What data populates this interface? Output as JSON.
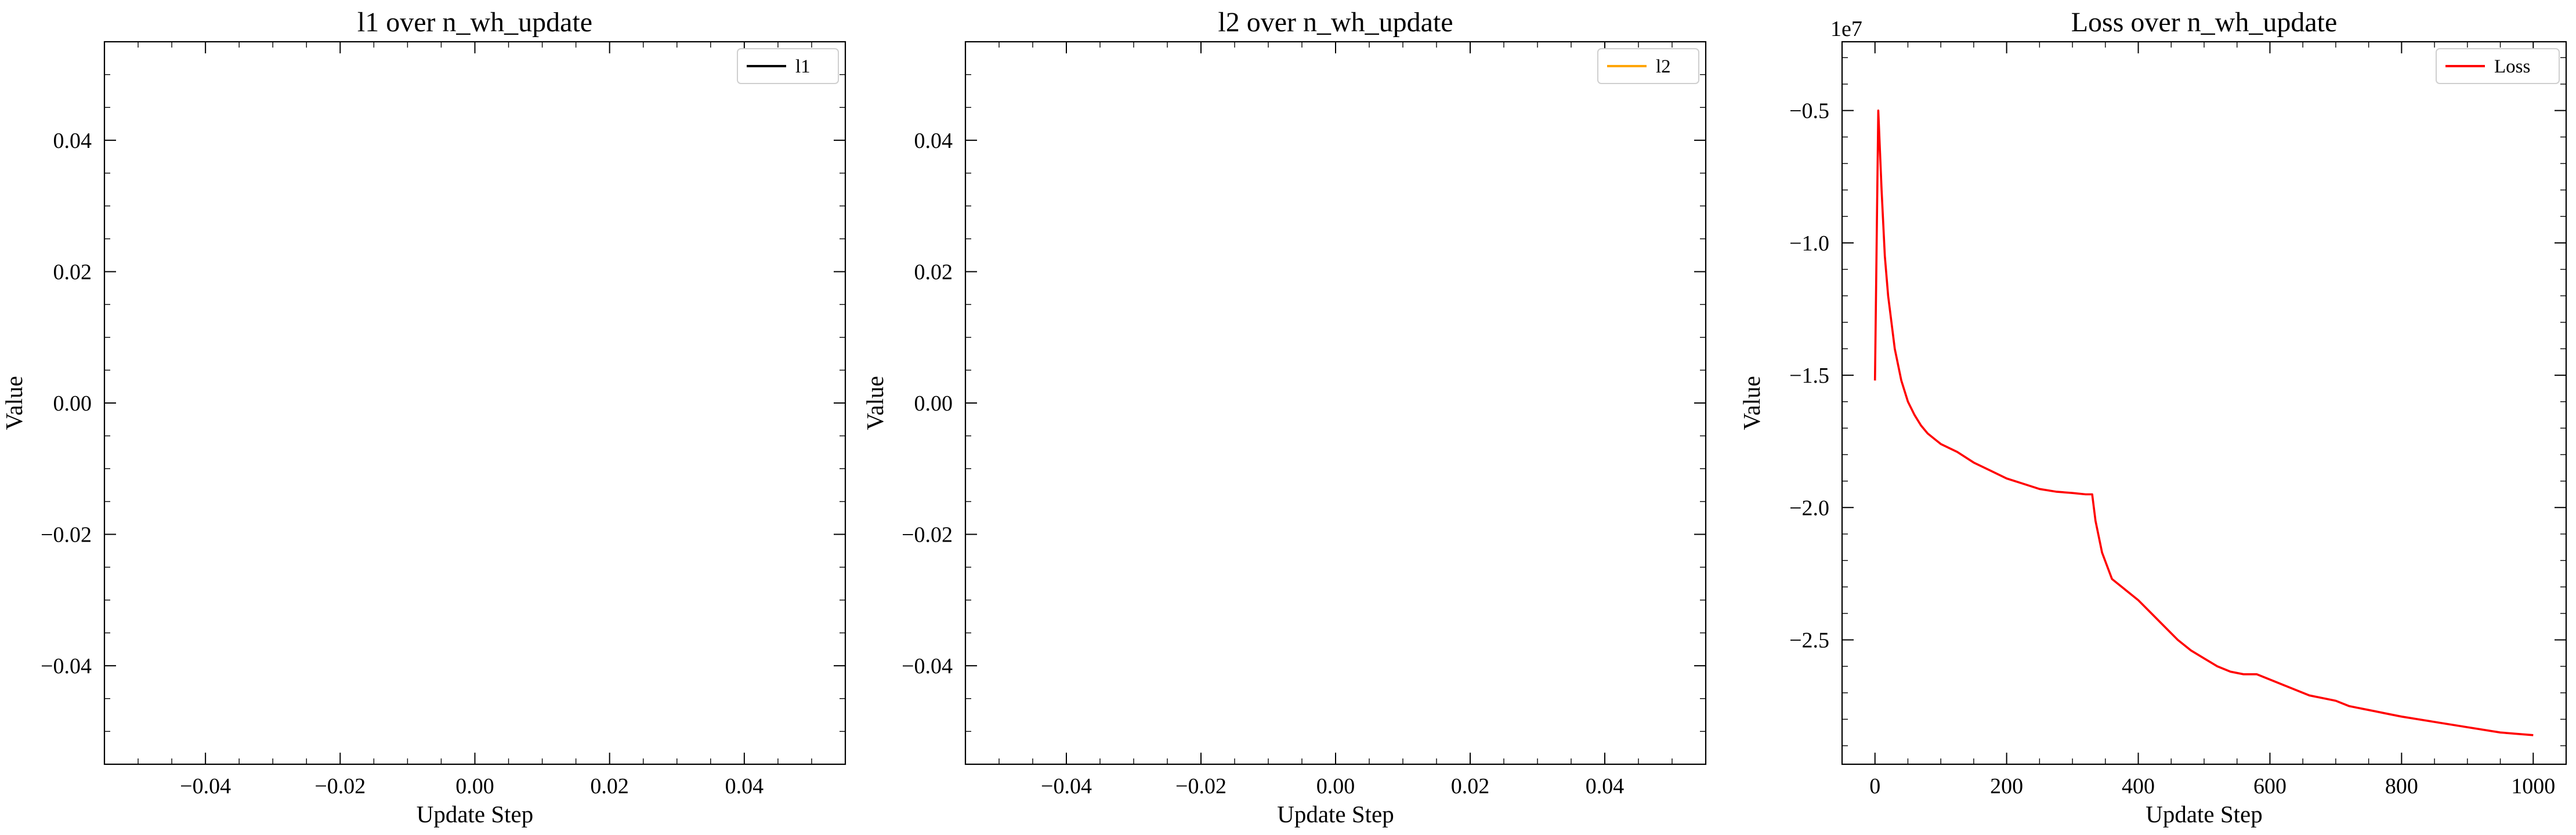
{
  "chart_data": [
    {
      "type": "line",
      "title": "l1 over n_wh_update",
      "xlabel": "Update Step",
      "ylabel": "Value",
      "xlim": [
        -0.055,
        0.055
      ],
      "ylim": [
        -0.055,
        0.055
      ],
      "x_ticks": [
        -0.04,
        -0.02,
        0.0,
        0.02,
        0.04
      ],
      "x_tick_labels": [
        "−0.04",
        "−0.02",
        "0.00",
        "0.02",
        "0.04"
      ],
      "y_ticks": [
        -0.04,
        -0.02,
        0.0,
        0.02,
        0.04
      ],
      "y_tick_labels": [
        "−0.04",
        "−0.02",
        "0.00",
        "0.02",
        "0.04"
      ],
      "minor_step": 0.005,
      "legend_position": "top-right",
      "series": [
        {
          "name": "l1",
          "color": "#000000",
          "x": [],
          "y": []
        }
      ]
    },
    {
      "type": "line",
      "title": "l2 over n_wh_update",
      "xlabel": "Update Step",
      "ylabel": "Value",
      "xlim": [
        -0.055,
        0.055
      ],
      "ylim": [
        -0.055,
        0.055
      ],
      "x_ticks": [
        -0.04,
        -0.02,
        0.0,
        0.02,
        0.04
      ],
      "x_tick_labels": [
        "−0.04",
        "−0.02",
        "0.00",
        "0.02",
        "0.04"
      ],
      "y_ticks": [
        -0.04,
        -0.02,
        0.0,
        0.02,
        0.04
      ],
      "y_tick_labels": [
        "−0.04",
        "−0.02",
        "0.00",
        "0.02",
        "0.04"
      ],
      "minor_step": 0.005,
      "legend_position": "top-right",
      "series": [
        {
          "name": "l2",
          "color": "#FFA500",
          "x": [],
          "y": []
        }
      ]
    },
    {
      "type": "line",
      "title": "Loss over n_wh_update",
      "xlabel": "Update Step",
      "ylabel": "Value",
      "y_offset_label": "1e7",
      "xlim": [
        -50,
        1050
      ],
      "ylim": [
        -2.97,
        -0.24
      ],
      "x_ticks": [
        0,
        200,
        400,
        600,
        800,
        1000
      ],
      "x_tick_labels": [
        "0",
        "200",
        "400",
        "600",
        "800",
        "1000"
      ],
      "x_minor_step": 50,
      "y_ticks": [
        -2.5,
        -2.0,
        -1.5,
        -1.0,
        -0.5
      ],
      "y_tick_labels": [
        "−2.5",
        "−2.0",
        "−1.5",
        "−1.0",
        "−0.5"
      ],
      "y_minor_step": 0.1,
      "legend_position": "top-right",
      "series": [
        {
          "name": "Loss",
          "color": "#FF0000",
          "x": [
            0,
            5,
            10,
            15,
            20,
            30,
            40,
            50,
            60,
            70,
            80,
            90,
            100,
            125,
            150,
            175,
            200,
            225,
            250,
            275,
            300,
            320,
            330,
            335,
            345,
            360,
            380,
            400,
            420,
            440,
            460,
            480,
            500,
            520,
            540,
            560,
            580,
            600,
            620,
            640,
            660,
            680,
            700,
            720,
            740,
            760,
            780,
            800,
            850,
            900,
            950,
            1000
          ],
          "y": [
            -1.52,
            -0.5,
            -0.8,
            -1.05,
            -1.2,
            -1.4,
            -1.52,
            -1.6,
            -1.65,
            -1.69,
            -1.72,
            -1.74,
            -1.76,
            -1.79,
            -1.83,
            -1.86,
            -1.89,
            -1.91,
            -1.93,
            -1.94,
            -1.945,
            -1.95,
            -1.95,
            -2.05,
            -2.17,
            -2.27,
            -2.31,
            -2.35,
            -2.4,
            -2.45,
            -2.5,
            -2.54,
            -2.57,
            -2.6,
            -2.62,
            -2.63,
            -2.63,
            -2.65,
            -2.67,
            -2.69,
            -2.71,
            -2.72,
            -2.73,
            -2.75,
            -2.76,
            -2.77,
            -2.78,
            -2.79,
            -2.81,
            -2.83,
            -2.85,
            -2.86
          ]
        }
      ]
    }
  ]
}
